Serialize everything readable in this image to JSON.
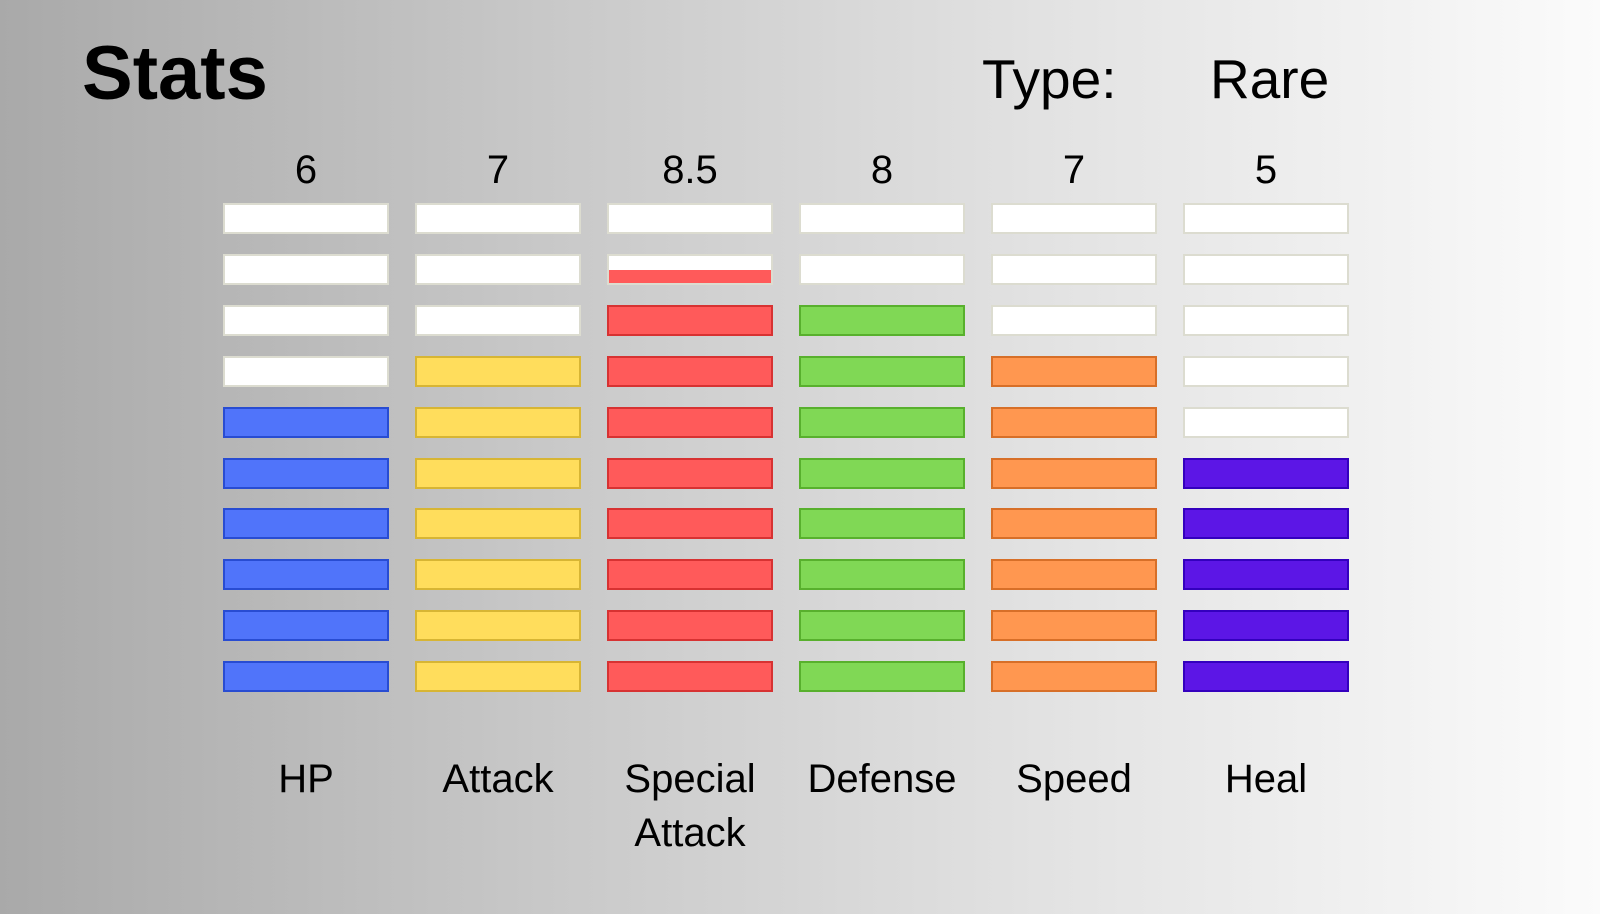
{
  "header": {
    "title": "Stats",
    "type_label": "Type:",
    "type_value": "Rare"
  },
  "chart_data": {
    "type": "bar",
    "segments_per_stat": 10,
    "categories": [
      "HP",
      "Attack",
      "Special Attack",
      "Defense",
      "Speed",
      "Heal"
    ],
    "stats": [
      {
        "name": "HP",
        "value": 6,
        "value_label": "6",
        "color": "#5074fa"
      },
      {
        "name": "Attack",
        "value": 7,
        "value_label": "7",
        "color": "#ffdd5c"
      },
      {
        "name": "Special Attack",
        "value": 8.5,
        "value_label": "8.5",
        "color": "#ff5a5a"
      },
      {
        "name": "Defense",
        "value": 8,
        "value_label": "8",
        "color": "#80d855"
      },
      {
        "name": "Speed",
        "value": 7,
        "value_label": "7",
        "color": "#ff9750"
      },
      {
        "name": "Heal",
        "value": 5,
        "value_label": "5",
        "color": "#5c16e6"
      }
    ]
  }
}
